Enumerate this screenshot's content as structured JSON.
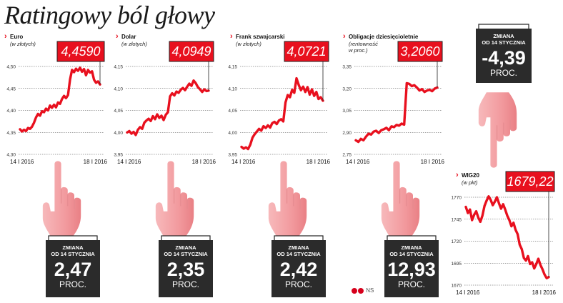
{
  "headline": "Ratingowy ból głowy",
  "credit": "NS",
  "colors": {
    "line": "#e8101e",
    "callout": "#e8101e",
    "box_dark": "#2b2b2b",
    "hand": "#f4a7aa",
    "grid": "#444444"
  },
  "change_label_line1": "ZMIANA",
  "change_label_line2": "OD 14 STYCZNIA",
  "change_unit": "PROC.",
  "chart_data": [
    {
      "type": "line",
      "title": "Euro",
      "subtitle": "(w złotych)",
      "current_value_label": "4,4590",
      "change": "2,47",
      "xlabel_start": "14 I 2016",
      "xlabel_end": "18 I 2016",
      "y_ticks": [
        "4,30",
        "4,35",
        "4,40",
        "4,45",
        "4,50"
      ],
      "ylim": [
        4.3,
        4.5
      ],
      "values": [
        4.357,
        4.352,
        4.356,
        4.353,
        4.36,
        4.358,
        4.363,
        4.372,
        4.384,
        4.392,
        4.388,
        4.398,
        4.396,
        4.404,
        4.4,
        4.411,
        4.406,
        4.413,
        4.407,
        4.418,
        4.415,
        4.426,
        4.433,
        4.428,
        4.435,
        4.47,
        4.492,
        4.487,
        4.495,
        4.49,
        4.497,
        4.488,
        4.494,
        4.48,
        4.492,
        4.486,
        4.489,
        4.47,
        4.463,
        4.466,
        4.459
      ]
    },
    {
      "type": "line",
      "title": "Dolar",
      "subtitle": "(w złotych)",
      "current_value_label": "4,0949",
      "change": "2,35",
      "xlabel_start": "14 I 2016",
      "xlabel_end": "18 I 2016",
      "y_ticks": [
        "3,95",
        "4,00",
        "4,05",
        "4,10",
        "4,15"
      ],
      "ylim": [
        3.95,
        4.15
      ],
      "values": [
        4.0,
        4.003,
        3.997,
        4.001,
        3.994,
        4.006,
        4.012,
        4.008,
        4.022,
        4.027,
        4.031,
        4.026,
        4.037,
        4.03,
        4.041,
        4.033,
        4.038,
        4.028,
        4.04,
        4.046,
        4.082,
        4.089,
        4.084,
        4.093,
        4.09,
        4.097,
        4.101,
        4.096,
        4.104,
        4.111,
        4.106,
        4.118,
        4.112,
        4.103,
        4.098,
        4.092,
        4.098,
        4.094,
        4.095
      ]
    },
    {
      "type": "line",
      "title": "Frank szwajcarski",
      "subtitle": "(w złotych)",
      "current_value_label": "4,0721",
      "change": "2,42",
      "xlabel_start": "14 I 2016",
      "xlabel_end": "18 I 2016",
      "y_ticks": [
        "3,95",
        "4,00",
        "4,05",
        "4,10",
        "4,15"
      ],
      "ylim": [
        3.95,
        4.15
      ],
      "values": [
        3.967,
        3.963,
        3.966,
        3.962,
        3.972,
        3.988,
        3.996,
        4.002,
        4.008,
        4.004,
        4.014,
        4.01,
        4.016,
        4.011,
        4.021,
        4.024,
        4.019,
        4.027,
        4.03,
        4.025,
        4.068,
        4.085,
        4.08,
        4.097,
        4.09,
        4.123,
        4.108,
        4.096,
        4.104,
        4.092,
        4.103,
        4.086,
        4.098,
        4.083,
        4.092,
        4.076,
        4.08,
        4.072
      ]
    },
    {
      "type": "line",
      "title": "Obligacje dziesięcioletnie",
      "subtitle": "(rentowność w proc.)",
      "current_value_label": "3,2060",
      "change": "12,93",
      "xlabel_start": "14 I 2016",
      "xlabel_end": "18 I 2016",
      "y_ticks": [
        "2,75",
        "2,90",
        "3,05",
        "3,20",
        "3,35"
      ],
      "ylim": [
        2.75,
        3.35
      ],
      "values": [
        2.846,
        2.835,
        2.856,
        2.846,
        2.871,
        2.891,
        2.885,
        2.905,
        2.911,
        2.896,
        2.915,
        2.921,
        2.931,
        2.915,
        2.941,
        2.936,
        2.951,
        2.946,
        2.96,
        2.953,
        3.236,
        3.231,
        3.216,
        3.222,
        3.206,
        3.186,
        3.196,
        3.176,
        3.186,
        3.191,
        3.181,
        3.199,
        3.206
      ]
    },
    {
      "type": "line",
      "title": "WIG20",
      "subtitle": "(w pkt)",
      "current_value_label": "1679,22",
      "change": "-4,39",
      "xlabel_start": "14 I 2016",
      "xlabel_end": "18 I 2016",
      "y_ticks": [
        "1670",
        "1695",
        "1720",
        "1745",
        "1770"
      ],
      "ylim": [
        1670,
        1770
      ],
      "values": [
        1759,
        1752,
        1756,
        1744,
        1750,
        1754,
        1747,
        1742,
        1749,
        1760,
        1766,
        1771,
        1767,
        1761,
        1765,
        1770,
        1763,
        1757,
        1762,
        1756,
        1749,
        1744,
        1737,
        1741,
        1733,
        1728,
        1716,
        1711,
        1701,
        1698,
        1703,
        1694,
        1696,
        1689,
        1694,
        1700,
        1693,
        1688,
        1682,
        1678,
        1679.2
      ]
    }
  ]
}
